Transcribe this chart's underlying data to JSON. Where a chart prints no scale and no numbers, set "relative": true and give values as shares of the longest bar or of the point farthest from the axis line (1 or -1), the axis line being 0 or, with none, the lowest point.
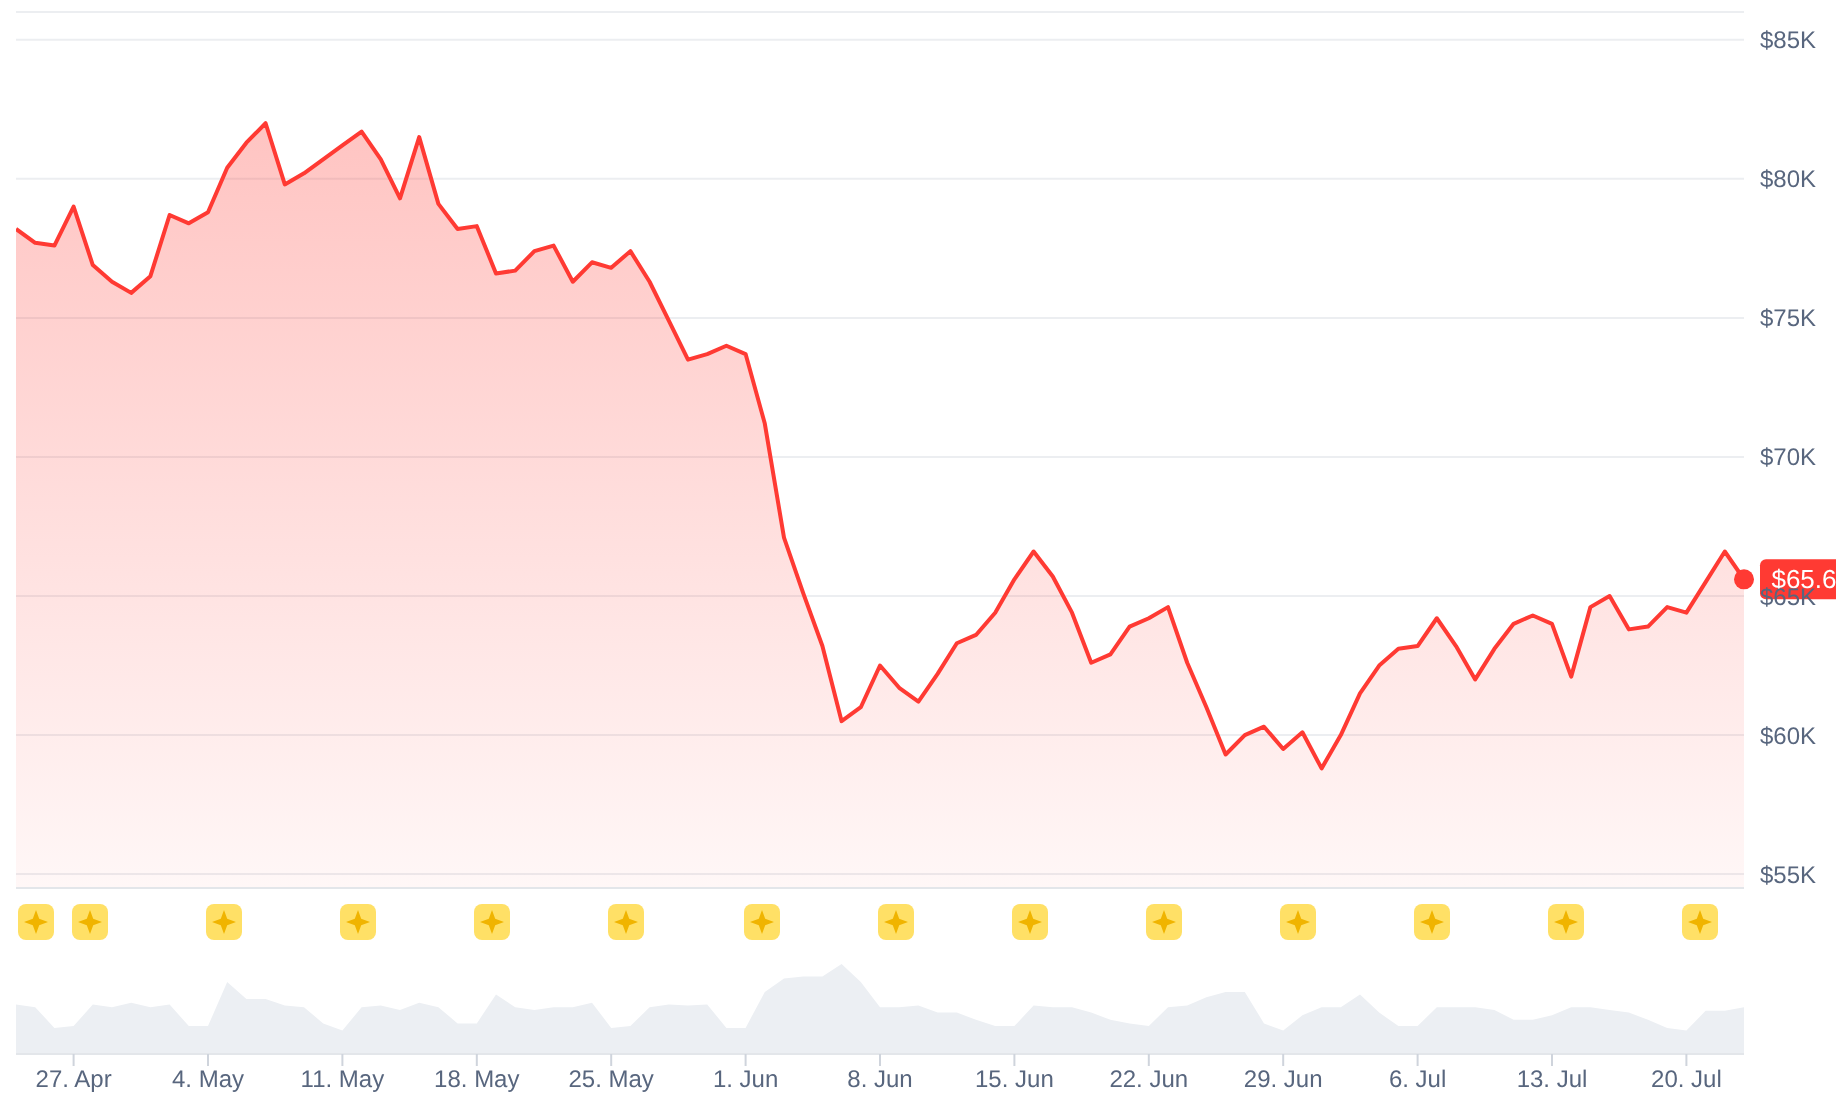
{
  "chart_data": [
    {
      "type": "area",
      "x": [
        "--04-24",
        "--04-25",
        "--04-26",
        "--04-27",
        "--04-28",
        "--04-29",
        "--04-30",
        "--05-01",
        "--05-02",
        "--05-03",
        "--05-04",
        "--05-05",
        "--05-06",
        "--05-07",
        "--05-08",
        "--05-09",
        "--05-10",
        "--05-11",
        "--05-12",
        "--05-13",
        "--05-14",
        "--05-15",
        "--05-16",
        "--05-17",
        "--05-18",
        "--05-19",
        "--05-20",
        "--05-21",
        "--05-22",
        "--05-23",
        "--05-24",
        "--05-25",
        "--05-26",
        "--05-27",
        "--05-28",
        "--05-29",
        "--05-30",
        "--05-31",
        "--06-01",
        "--06-02",
        "--06-03",
        "--06-04",
        "--06-05",
        "--06-06",
        "--06-07",
        "--06-08",
        "--06-09",
        "--06-10",
        "--06-11",
        "--06-12",
        "--06-13",
        "--06-14",
        "--06-15",
        "--06-16",
        "--06-17",
        "--06-18",
        "--06-19",
        "--06-20",
        "--06-21",
        "--06-22",
        "--06-23",
        "--06-24",
        "--06-25",
        "--06-26",
        "--06-27",
        "--06-28",
        "--06-29",
        "--06-30",
        "--07-01",
        "--07-02",
        "--07-03",
        "--07-04",
        "--07-05",
        "--07-06",
        "--07-07",
        "--07-08",
        "--07-09",
        "--07-10",
        "--07-11",
        "--07-12",
        "--07-13",
        "--07-14",
        "--07-15",
        "--07-16",
        "--07-17",
        "--07-18",
        "--07-19",
        "--07-20",
        "--07-21",
        "--07-22",
        "--07-23"
      ],
      "series": [
        {
          "color": "#ff3a33",
          "values": [
            78200,
            77700,
            77600,
            79000,
            76900,
            76300,
            75900,
            76500,
            78700,
            78400,
            78800,
            80400,
            81300,
            82000,
            79800,
            80200,
            80700,
            81200,
            81700,
            80700,
            79300,
            81500,
            79100,
            78200,
            78300,
            76600,
            76700,
            77400,
            77600,
            76300,
            77000,
            76800,
            77400,
            76300,
            74900,
            73500,
            73700,
            74000,
            73700,
            71200,
            67100,
            65100,
            63200,
            60500,
            61000,
            62500,
            61700,
            61200,
            62200,
            63300,
            63600,
            64400,
            65600,
            66600,
            65700,
            64400,
            62600,
            62900,
            63900,
            64200,
            64600,
            62600,
            61000,
            59300,
            60000,
            60300,
            59500,
            60100,
            58800,
            60000,
            61500,
            62500,
            63100,
            63200,
            64200,
            63200,
            62000,
            63100,
            64000,
            64300,
            64000,
            62100,
            64600,
            65000,
            63800,
            63900,
            64600,
            64400,
            65500,
            66600,
            65600
          ]
        }
      ],
      "xlim": [
        "--04-24",
        "--07-23"
      ],
      "ylim": [
        54500,
        86000
      ],
      "yticks": [
        {
          "value": 55000,
          "label": "$55K"
        },
        {
          "value": 60000,
          "label": "$60K"
        },
        {
          "value": 65000,
          "label": "$65K"
        },
        {
          "value": 70000,
          "label": "$70K"
        },
        {
          "value": 75000,
          "label": "$75K"
        },
        {
          "value": 80000,
          "label": "$80K"
        },
        {
          "value": 85000,
          "label": "$85K"
        }
      ],
      "grid": "y",
      "tick_labels": "y",
      "annotations": [
        {
          "text": "$65.6",
          "x": "--07-23",
          "y": 65600
        }
      ]
    },
    {
      "type": "area",
      "relative": true,
      "x": [
        "--04-24",
        "--04-25",
        "--04-26",
        "--04-27",
        "--04-28",
        "--04-29",
        "--04-30",
        "--05-01",
        "--05-02",
        "--05-03",
        "--05-04",
        "--05-05",
        "--05-06",
        "--05-07",
        "--05-08",
        "--05-09",
        "--05-10",
        "--05-11",
        "--05-12",
        "--05-13",
        "--05-14",
        "--05-15",
        "--05-16",
        "--05-17",
        "--05-18",
        "--05-19",
        "--05-20",
        "--05-21",
        "--05-22",
        "--05-23",
        "--05-24",
        "--05-25",
        "--05-26",
        "--05-27",
        "--05-28",
        "--05-29",
        "--05-30",
        "--05-31",
        "--06-01",
        "--06-02",
        "--06-03",
        "--06-04",
        "--06-05",
        "--06-06",
        "--06-07",
        "--06-08",
        "--06-09",
        "--06-10",
        "--06-11",
        "--06-12",
        "--06-13",
        "--06-14",
        "--06-15",
        "--06-16",
        "--06-17",
        "--06-18",
        "--06-19",
        "--06-20",
        "--06-21",
        "--06-22",
        "--06-23",
        "--06-24",
        "--06-25",
        "--06-26",
        "--06-27",
        "--06-28",
        "--06-29",
        "--06-30",
        "--07-01",
        "--07-02",
        "--07-03",
        "--07-04",
        "--07-05",
        "--07-06",
        "--07-07",
        "--07-08",
        "--07-09",
        "--07-10",
        "--07-11",
        "--07-12",
        "--07-13",
        "--07-14",
        "--07-15",
        "--07-16",
        "--07-17",
        "--07-18",
        "--07-19",
        "--07-20",
        "--07-21",
        "--07-22",
        "--07-23"
      ],
      "series": [
        {
          "color": "#eceff3",
          "values": [
            0.55,
            0.52,
            0.29,
            0.31,
            0.55,
            0.52,
            0.57,
            0.52,
            0.55,
            0.31,
            0.31,
            0.8,
            0.61,
            0.61,
            0.54,
            0.52,
            0.34,
            0.26,
            0.52,
            0.54,
            0.49,
            0.57,
            0.52,
            0.34,
            0.34,
            0.66,
            0.52,
            0.49,
            0.52,
            0.52,
            0.57,
            0.29,
            0.31,
            0.52,
            0.55,
            0.54,
            0.55,
            0.29,
            0.29,
            0.69,
            0.84,
            0.86,
            0.86,
            1,
            0.8,
            0.52,
            0.52,
            0.54,
            0.46,
            0.46,
            0.38,
            0.31,
            0.31,
            0.54,
            0.52,
            0.52,
            0.46,
            0.38,
            0.34,
            0.31,
            0.52,
            0.54,
            0.63,
            0.69,
            0.69,
            0.34,
            0.26,
            0.43,
            0.52,
            0.52,
            0.66,
            0.46,
            0.31,
            0.31,
            0.52,
            0.52,
            0.52,
            0.49,
            0.38,
            0.38,
            0.43,
            0.52,
            0.52,
            0.49,
            0.46,
            0.38,
            0.29,
            0.26,
            0.48,
            0.48,
            0.52
          ]
        }
      ],
      "xlim": [
        "--04-24",
        "--07-23"
      ],
      "xticks": [
        {
          "value": "--04-27",
          "label": "27. Apr"
        },
        {
          "value": "--05-04",
          "label": "4. May"
        },
        {
          "value": "--05-11",
          "label": "11. May"
        },
        {
          "value": "--05-18",
          "label": "18. May"
        },
        {
          "value": "--05-25",
          "label": "25. May"
        },
        {
          "value": "--06-01",
          "label": "1. Jun"
        },
        {
          "value": "--06-08",
          "label": "8. Jun"
        },
        {
          "value": "--06-15",
          "label": "15. Jun"
        },
        {
          "value": "--06-22",
          "label": "22. Jun"
        },
        {
          "value": "--06-29",
          "label": "29. Jun"
        },
        {
          "value": "--07-06",
          "label": "6. Jul"
        },
        {
          "value": "--07-13",
          "label": "13. Jul"
        },
        {
          "value": "--07-20",
          "label": "20. Jul"
        }
      ],
      "tick_labels": "x"
    }
  ]
}
